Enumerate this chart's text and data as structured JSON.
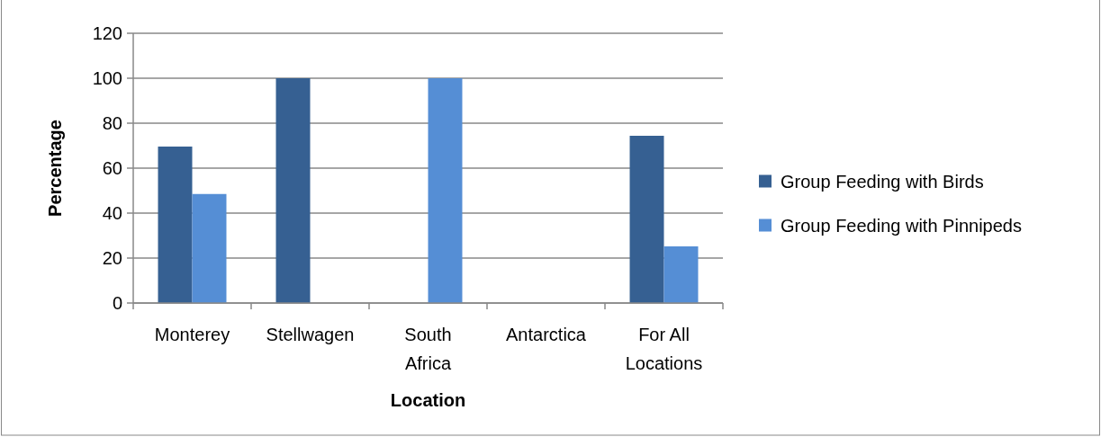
{
  "chart_data": {
    "type": "bar",
    "xlabel": "Location",
    "ylabel": "Percentage",
    "categories": [
      "Monterey",
      "Stellwagen",
      "South Africa",
      "Antarctica",
      "For All Locations"
    ],
    "series": [
      {
        "name": "Group Feeding with Birds",
        "color": "#366092",
        "values": [
          69.6,
          100,
          0,
          0,
          74.4
        ]
      },
      {
        "name": "Group Feeding with Pinnipeds",
        "color": "#558ed5",
        "values": [
          48.5,
          0,
          100,
          0,
          25.2
        ]
      }
    ],
    "ylim": [
      0,
      120
    ],
    "yticks": [
      0,
      20,
      40,
      60,
      80,
      100,
      120
    ],
    "grid": "y",
    "legend": "right"
  }
}
